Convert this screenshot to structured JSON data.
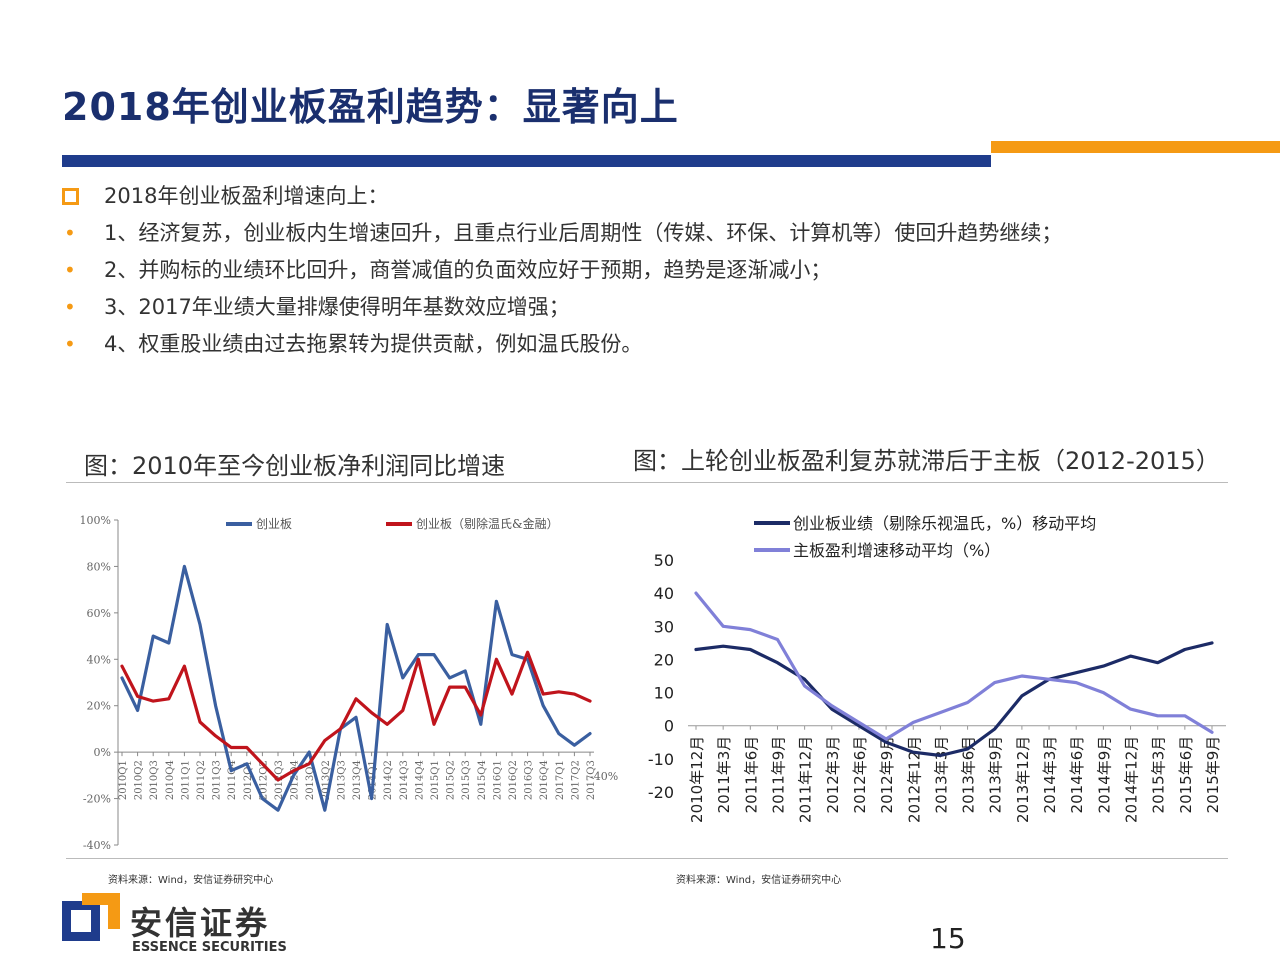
{
  "title": "2018年创业板盈利趋势：显著向上",
  "colors": {
    "navy": "#1f3c8c",
    "orange": "#f59a14",
    "title": "#1a2f6e"
  },
  "bullets": [
    {
      "marker": "square",
      "text": "2018年创业板盈利增速向上："
    },
    {
      "marker": "dot",
      "text": "1、经济复苏，创业板内生增速回升，且重点行业后周期性（传媒、环保、计算机等）使回升趋势继续；"
    },
    {
      "marker": "dot",
      "text": "2、并购标的业绩环比回升，商誉减值的负面效应好于预期，趋势是逐渐减小；"
    },
    {
      "marker": "dot",
      "text": "3、2017年业绩大量排爆使得明年基数效应增强；"
    },
    {
      "marker": "dot",
      "text": "4、权重股业绩由过去拖累转为提供贡献，例如温氏股份。"
    }
  ],
  "bullet_dot": "•",
  "left_chart_title": "图：2010年至今创业板净利润同比增速",
  "right_chart_title": "图：上轮创业板盈利复苏就滞后于主板（2012-2015）",
  "chart_data": [
    {
      "type": "line",
      "title": "2010年至今创业板净利润同比增速",
      "ylim": [
        -40,
        100
      ],
      "yticks": [
        -40,
        -20,
        0,
        20,
        40,
        60,
        80,
        100
      ],
      "ytick_labels": [
        "-40%",
        "-20%",
        "0%",
        "20%",
        "40%",
        "60%",
        "80%",
        "100%"
      ],
      "categories": [
        "2010Q1",
        "2010Q2",
        "2010Q3",
        "2010Q4",
        "2011Q1",
        "2011Q2",
        "2011Q3",
        "2011Q4",
        "2012Q1",
        "2012Q2",
        "2012Q3",
        "2012Q4",
        "2013Q1",
        "2013Q2",
        "2013Q3",
        "2013Q4",
        "2014Q1",
        "2014Q2",
        "2014Q3",
        "2014Q4",
        "2015Q1",
        "2015Q2",
        "2015Q3",
        "2015Q4",
        "2016Q1",
        "2016Q2",
        "2016Q3",
        "2016Q4",
        "2017Q1",
        "2017Q2",
        "2017Q3"
      ],
      "series": [
        {
          "name": "创业板",
          "color": "#3a5fa0",
          "values": [
            32,
            18,
            50,
            47,
            80,
            55,
            20,
            -8,
            -5,
            -20,
            -25,
            -10,
            0,
            -25,
            10,
            15,
            -20,
            55,
            32,
            42,
            42,
            32,
            35,
            12,
            65,
            42,
            40,
            20,
            8,
            3,
            8
          ]
        },
        {
          "name": "创业板（剔除温氏&金融）",
          "color": "#c0141c",
          "values": [
            37,
            24,
            22,
            23,
            37,
            13,
            7,
            2,
            2,
            -5,
            -12,
            -8,
            -5,
            5,
            10,
            23,
            17,
            12,
            18,
            40,
            12,
            28,
            28,
            16,
            40,
            25,
            43,
            25,
            26,
            25,
            22
          ]
        }
      ],
      "extra_label": "-40%"
    },
    {
      "type": "line",
      "title": "上轮创业板盈利复苏就滞后于主板（2012-2015）",
      "ylim": [
        -20,
        50
      ],
      "yticks": [
        -20,
        -10,
        0,
        10,
        20,
        30,
        40,
        50
      ],
      "ytick_labels": [
        "-20",
        "-10",
        "0",
        "10",
        "20",
        "30",
        "40",
        "50"
      ],
      "categories": [
        "2010年12月",
        "2011年3月",
        "2011年6月",
        "2011年9月",
        "2011年12月",
        "2012年3月",
        "2012年6月",
        "2012年9月",
        "2012年12月",
        "2013年3月",
        "2013年6月",
        "2013年9月",
        "2013年12月",
        "2014年3月",
        "2014年6月",
        "2014年9月",
        "2014年12月",
        "2015年3月",
        "2015年6月",
        "2015年9月"
      ],
      "series": [
        {
          "name": "创业板业绩（剔除乐视温氏，%）移动平均",
          "color": "#1c2b66",
          "values": [
            23,
            24,
            23,
            19,
            14,
            5,
            0,
            -5,
            -8,
            -9,
            -7,
            -1,
            9,
            14,
            16,
            18,
            21,
            19,
            23,
            25
          ]
        },
        {
          "name": "主板盈利增速移动平均（%）",
          "color": "#8080d8",
          "values": [
            40,
            30,
            29,
            26,
            12,
            6,
            1,
            -4,
            1,
            4,
            7,
            13,
            15,
            14,
            13,
            10,
            5,
            3,
            3,
            -2
          ]
        }
      ]
    }
  ],
  "source_left": "资料来源：Wind，安信证券研究中心",
  "source_right": "资料来源：Wind，安信证券研究中心",
  "brand": {
    "name_cn": "安信证券",
    "name_en": "ESSENCE SECURITIES"
  },
  "page_number": "15"
}
